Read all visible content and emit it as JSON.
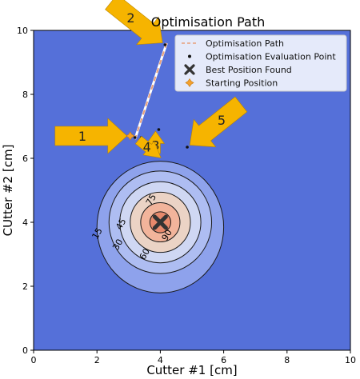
{
  "chart_data": {
    "type": "contour",
    "title": "Optimisation Path",
    "xlabel": "Cutter #1 [cm]",
    "ylabel": "CUtter #2 [cm]",
    "xlim": [
      0,
      10
    ],
    "ylim": [
      0,
      10
    ],
    "x_ticks": [
      "0",
      "2",
      "4",
      "6",
      "8",
      "10"
    ],
    "y_ticks": [
      "0",
      "2",
      "4",
      "6",
      "8",
      "10"
    ],
    "grid": false,
    "legend_position": "top-right",
    "legend": [
      "Optimisation Path",
      "Optimisation Evaluation Point",
      "Best Position Found",
      "Starting Position"
    ],
    "contour_center": [
      4.0,
      4.0
    ],
    "contour_levels": [
      {
        "level": 15,
        "label": "15",
        "color": "#8ea2ec"
      },
      {
        "level": 30,
        "label": "30",
        "color": "#aebdf2"
      },
      {
        "level": 45,
        "label": "45",
        "color": "#cfd7f3"
      },
      {
        "level": 60,
        "label": "60",
        "color": "#ebd3c5"
      },
      {
        "level": 75,
        "label": "75",
        "color": "#f2b49b"
      },
      {
        "level": 90,
        "label": "90",
        "color": "#e7896c"
      }
    ],
    "background_color": "#5570d9",
    "path": [
      [
        4.2,
        9.6
      ],
      [
        3.2,
        6.6
      ]
    ],
    "evaluation_points": [
      [
        4.15,
        9.55
      ],
      [
        3.2,
        6.65
      ],
      [
        3.4,
        6.65
      ],
      [
        3.95,
        6.9
      ],
      [
        4.85,
        6.35
      ]
    ],
    "starting_position": [
      3.05,
      6.7
    ],
    "best_position": [
      4.0,
      4.0
    ],
    "callouts": [
      {
        "label": "1",
        "x": 3.05,
        "y": 6.7,
        "from": "left"
      },
      {
        "label": "2",
        "x": 4.15,
        "y": 9.55,
        "from": "top-left"
      },
      {
        "label": "3",
        "x": 3.85,
        "y": 6.95,
        "from": "below"
      },
      {
        "label": "4",
        "x": 4.1,
        "y": 5.95,
        "from": "top-left"
      },
      {
        "label": "5",
        "x": 4.85,
        "y": 6.35,
        "from": "top-right"
      }
    ]
  }
}
